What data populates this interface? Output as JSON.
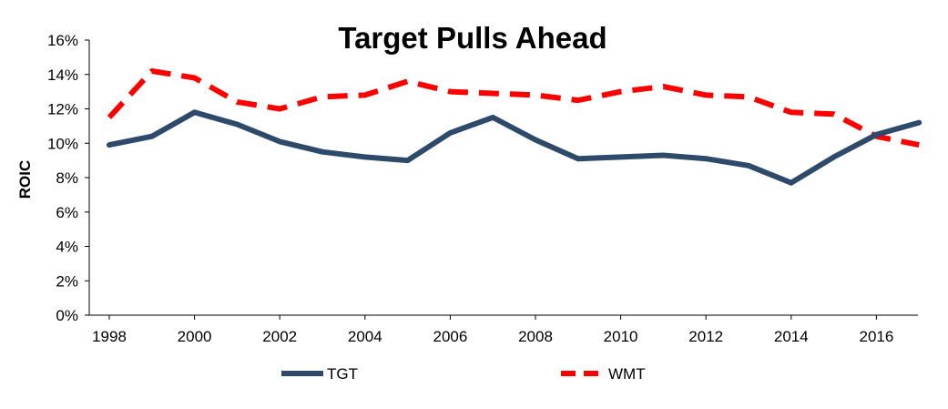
{
  "chart_data": {
    "type": "line",
    "title": "Target Pulls Ahead",
    "xlabel": "",
    "ylabel": "ROIC",
    "x": [
      1998,
      1999,
      2000,
      2001,
      2002,
      2003,
      2004,
      2005,
      2006,
      2007,
      2008,
      2009,
      2010,
      2011,
      2012,
      2013,
      2014,
      2015,
      2016,
      2017
    ],
    "x_tick_labels": [
      "1998",
      "2000",
      "2002",
      "2004",
      "2006",
      "2008",
      "2010",
      "2012",
      "2014",
      "2016"
    ],
    "y_tick_labels": [
      "0%",
      "2%",
      "4%",
      "6%",
      "8%",
      "10%",
      "12%",
      "14%",
      "16%"
    ],
    "ylim": [
      0,
      16
    ],
    "grid": false,
    "legend_position": "bottom",
    "series": [
      {
        "name": "TGT",
        "color": "#2e4a6b",
        "line_style": "solid",
        "values": [
          9.9,
          10.4,
          11.8,
          11.1,
          10.1,
          9.5,
          9.2,
          9.0,
          10.6,
          11.5,
          10.2,
          9.1,
          9.2,
          9.3,
          9.1,
          8.7,
          7.7,
          9.2,
          10.5,
          11.2
        ]
      },
      {
        "name": "WMT",
        "color": "#ff0000",
        "line_style": "dashed",
        "values": [
          11.5,
          14.2,
          13.8,
          12.4,
          12.0,
          12.7,
          12.8,
          13.6,
          13.0,
          12.9,
          12.8,
          12.5,
          13.0,
          13.3,
          12.8,
          12.7,
          11.8,
          11.7,
          10.4,
          9.9
        ]
      }
    ]
  }
}
